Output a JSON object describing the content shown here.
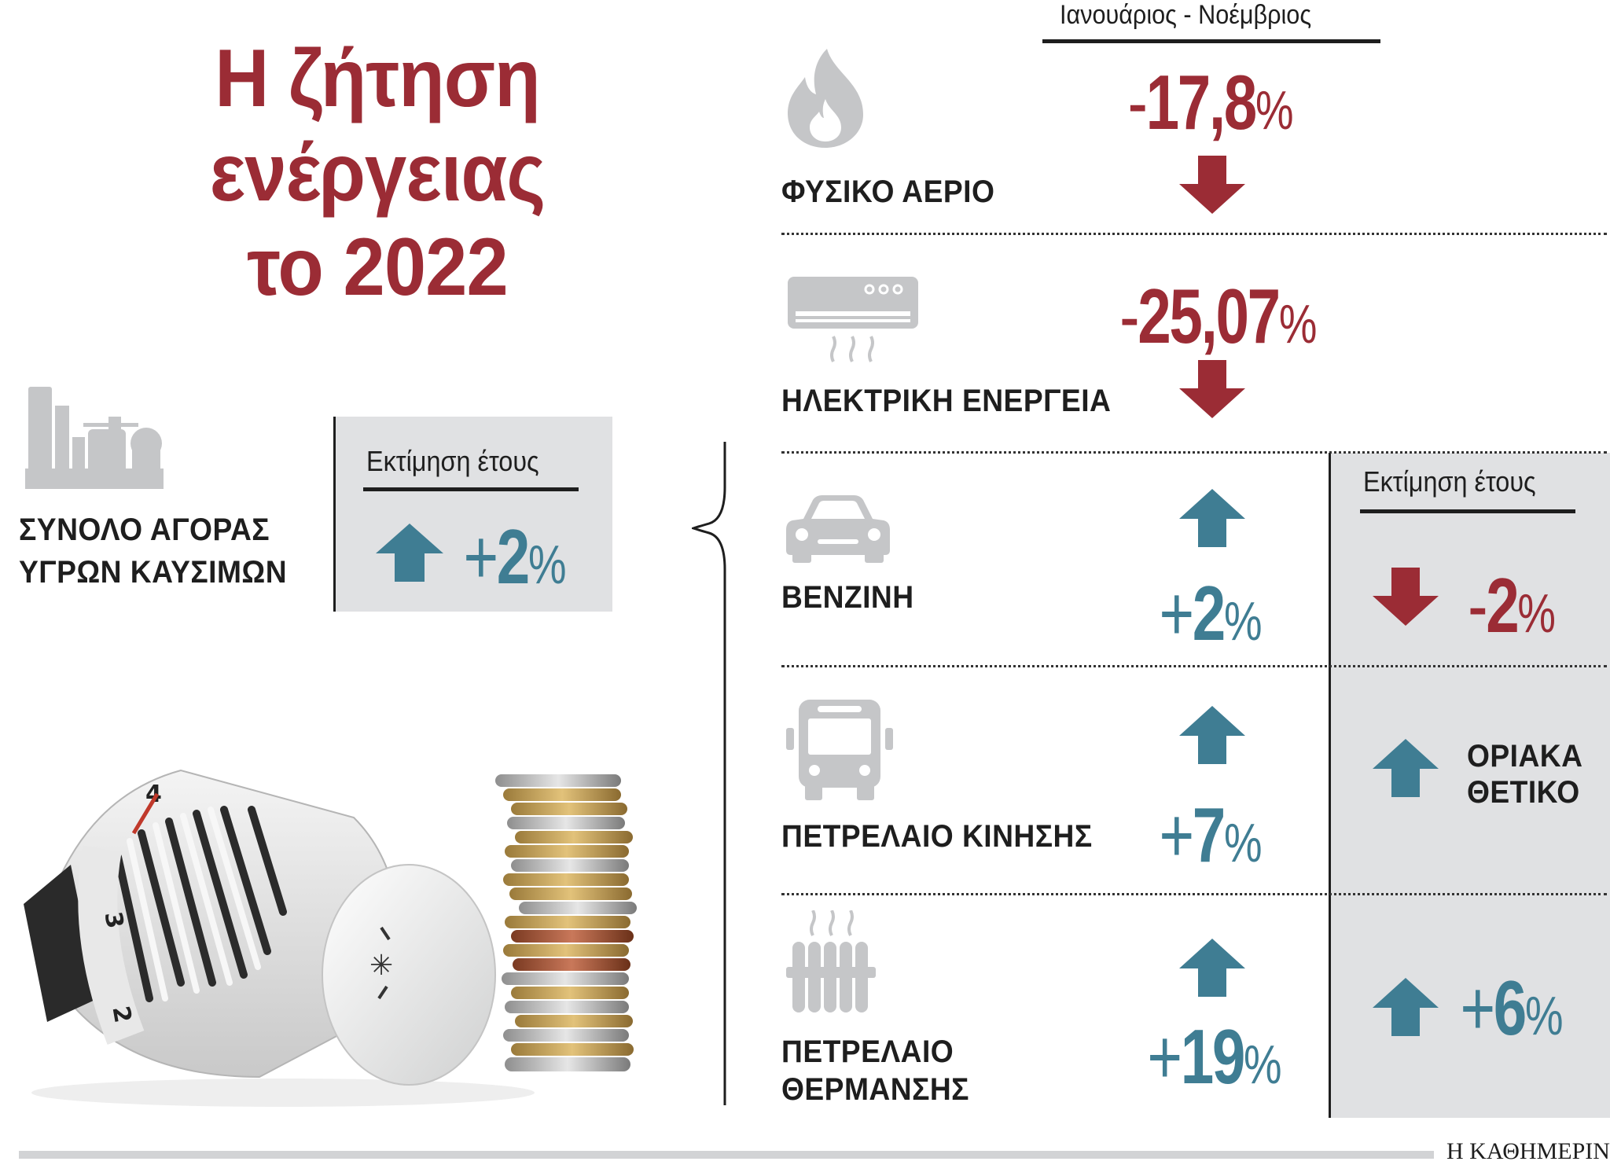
{
  "title": {
    "line1": "Η ζήτηση",
    "line2": "ενέργειας",
    "line3": "το 2022"
  },
  "period_header": "Ιανουάριος - Νοέμβριος",
  "estimate_header": "Εκτίμηση έτους",
  "market_total": {
    "label_line1": "ΣΥΝΟΛΟ ΑΓΟΡΑΣ",
    "label_line2": "ΥΓΡΩΝ ΚΑΥΣΙΜΩΝ",
    "estimate_header": "Εκτίμηση έτους",
    "sign": "+",
    "value": "2",
    "unit": "%",
    "icon": "refinery-icon"
  },
  "rows": [
    {
      "label": "ΦΥΣΙΚΟ ΑΕΡΙΟ",
      "sign": "-",
      "value": "17,8",
      "unit": "%",
      "direction": "down",
      "icon": "flame-icon"
    },
    {
      "label": "ΗΛΕΚΤΡΙΚΗ ΕΝΕΡΓΕΙΑ",
      "sign": "-",
      "value": "25,07",
      "unit": "%",
      "direction": "down",
      "icon": "air-conditioner-icon"
    },
    {
      "label": "ΒΕΝΖΙΝΗ",
      "sign": "+",
      "value": "2",
      "unit": "%",
      "direction": "up",
      "icon": "car-icon",
      "estimate": {
        "sign": "-",
        "value": "2",
        "unit": "%",
        "direction": "down"
      }
    },
    {
      "label": "ΠΕΤΡΕΛΑΙΟ ΚΙΝΗΣΗΣ",
      "sign": "+",
      "value": "7",
      "unit": "%",
      "direction": "up",
      "icon": "bus-icon",
      "estimate": {
        "text_line1": "ΟΡΙΑΚΑ",
        "text_line2": "ΘΕΤΙΚΟ",
        "direction": "up"
      }
    },
    {
      "label_line1": "ΠΕΤΡΕΛΑΙΟ",
      "label_line2": "ΘΕΡΜΑΝΣΗΣ",
      "sign": "+",
      "value": "19",
      "unit": "%",
      "direction": "up",
      "icon": "radiator-icon",
      "estimate": {
        "sign": "+",
        "value": "6",
        "unit": "%",
        "direction": "up"
      }
    }
  ],
  "thermostat_dial": {
    "n4": "4",
    "n3": "3",
    "n2": "2"
  },
  "footer": {
    "brand": "Η ΚΑΘΗΜΕΡΙΝΗ"
  },
  "colors": {
    "red": "#9b2c35",
    "blue": "#3f7d93",
    "grey_box": "#e0e1e3",
    "icon_grey": "#c5c6c8"
  }
}
